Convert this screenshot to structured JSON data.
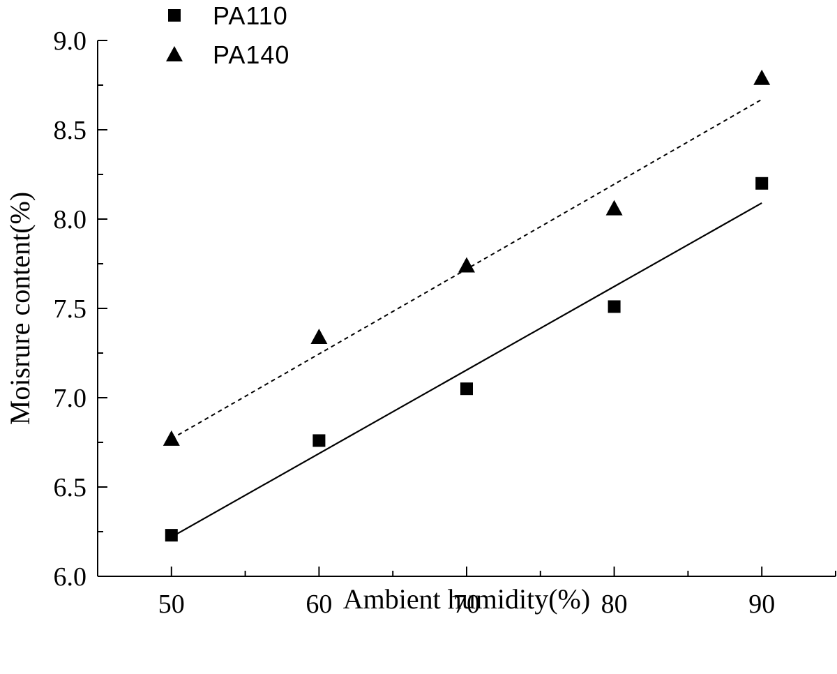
{
  "chart_data": {
    "type": "scatter",
    "xlabel": "Ambient humidity(%)",
    "ylabel": "Moisrure content(%)",
    "xlim": [
      45,
      95
    ],
    "ylim": [
      6.0,
      9.0
    ],
    "x_ticks": [
      50,
      60,
      70,
      80,
      90
    ],
    "y_ticks": [
      "6.0",
      "6.5",
      "7.0",
      "7.5",
      "8.0",
      "8.5",
      "9.0"
    ],
    "legend_position": "top-left",
    "grid": false,
    "series": [
      {
        "name": "PA110",
        "marker": "square",
        "x": [
          50,
          60,
          70,
          80,
          90
        ],
        "y": [
          6.23,
          6.76,
          7.05,
          7.51,
          8.2
        ],
        "fit": {
          "style": "solid",
          "x": [
            50,
            90
          ],
          "y": [
            6.22,
            8.09
          ]
        }
      },
      {
        "name": "PA140",
        "marker": "triangle",
        "x": [
          50,
          60,
          70,
          80,
          90
        ],
        "y": [
          6.77,
          7.34,
          7.74,
          8.06,
          8.79
        ],
        "fit": {
          "style": "dashed",
          "x": [
            50,
            90
          ],
          "y": [
            6.77,
            8.67
          ]
        }
      }
    ]
  }
}
